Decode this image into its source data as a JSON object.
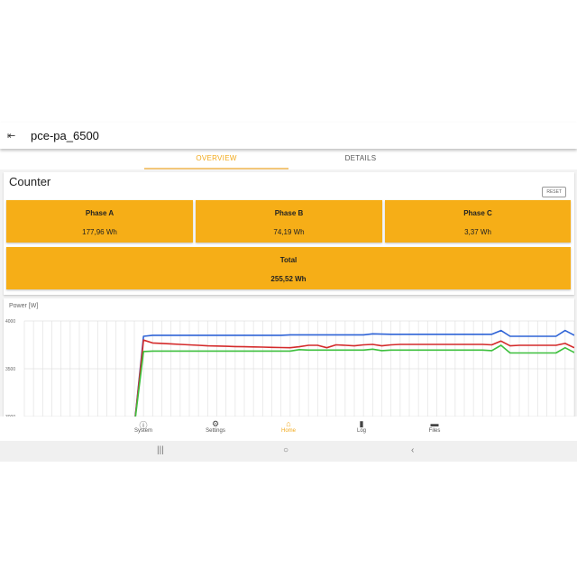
{
  "header": {
    "title": "pce-pa_6500",
    "back_icon": "logout-icon"
  },
  "tabs": [
    {
      "label": "OVERVIEW",
      "active": true
    },
    {
      "label": "DETAILS",
      "active": false
    }
  ],
  "counter": {
    "title": "Counter",
    "reset_label": "RESET",
    "phases": [
      {
        "label": "Phase A",
        "value": "177,96 Wh"
      },
      {
        "label": "Phase B",
        "value": "74,19 Wh"
      },
      {
        "label": "Phase C",
        "value": "3,37 Wh"
      }
    ],
    "total": {
      "label": "Total",
      "value": "255,52 Wh"
    },
    "tile_color": "#f6ae17"
  },
  "chart_data": {
    "type": "line",
    "title": "Power [W]",
    "ylim": [
      3000,
      4000
    ],
    "yticks": [
      "4000",
      "3500",
      "3000"
    ],
    "grid": true,
    "x": [
      0,
      1,
      2,
      3,
      4,
      5,
      6,
      7,
      8,
      9,
      10,
      11,
      12,
      13,
      14,
      15,
      16,
      17,
      18,
      19,
      20,
      21,
      22,
      23,
      24,
      25,
      26,
      27,
      28,
      29,
      30,
      31,
      32,
      33,
      34,
      35,
      36,
      37,
      38,
      39,
      40,
      41,
      42,
      43,
      44,
      45,
      46,
      47,
      48,
      49,
      50,
      51,
      52,
      53,
      54,
      55,
      56,
      57,
      58,
      59,
      60
    ],
    "series": [
      {
        "color": "#2e63d6",
        "values": [
          null,
          null,
          null,
          null,
          null,
          null,
          null,
          null,
          null,
          null,
          null,
          null,
          2900,
          3840,
          3850,
          3850,
          3850,
          3850,
          3850,
          3850,
          3850,
          3850,
          3850,
          3850,
          3850,
          3850,
          3850,
          3850,
          3850,
          3855,
          3855,
          3855,
          3855,
          3855,
          3855,
          3855,
          3855,
          3855,
          3865,
          3862,
          3860,
          3860,
          3860,
          3860,
          3860,
          3860,
          3860,
          3860,
          3860,
          3860,
          3860,
          3860,
          3900,
          3840,
          3840,
          3840,
          3840,
          3840,
          3840,
          3900,
          3850
        ]
      },
      {
        "color": "#d42a2a",
        "values": [
          null,
          null,
          null,
          null,
          null,
          null,
          null,
          null,
          null,
          null,
          null,
          null,
          2900,
          3800,
          3770,
          3765,
          3760,
          3755,
          3750,
          3745,
          3740,
          3738,
          3735,
          3732,
          3730,
          3728,
          3726,
          3724,
          3722,
          3720,
          3730,
          3745,
          3745,
          3720,
          3750,
          3745,
          3740,
          3750,
          3755,
          3740,
          3750,
          3755,
          3755,
          3755,
          3755,
          3755,
          3755,
          3755,
          3755,
          3755,
          3755,
          3750,
          3790,
          3740,
          3745,
          3745,
          3745,
          3745,
          3745,
          3765,
          3720
        ]
      },
      {
        "color": "#3cbf3c",
        "values": [
          null,
          null,
          null,
          null,
          null,
          null,
          null,
          null,
          null,
          null,
          null,
          null,
          2900,
          3680,
          3685,
          3685,
          3685,
          3685,
          3685,
          3685,
          3685,
          3685,
          3685,
          3685,
          3685,
          3685,
          3685,
          3685,
          3685,
          3685,
          3700,
          3695,
          3695,
          3695,
          3695,
          3695,
          3695,
          3695,
          3705,
          3690,
          3695,
          3695,
          3695,
          3695,
          3695,
          3695,
          3695,
          3695,
          3695,
          3695,
          3695,
          3690,
          3745,
          3665,
          3665,
          3665,
          3665,
          3665,
          3665,
          3720,
          3670
        ]
      }
    ]
  },
  "bottom_nav": [
    {
      "label": "System",
      "icon": "info-icon"
    },
    {
      "label": "Settings",
      "icon": "gear-icon"
    },
    {
      "label": "Home",
      "icon": "home-icon",
      "active": true
    },
    {
      "label": "Log",
      "icon": "file-icon"
    },
    {
      "label": "Files",
      "icon": "folder-icon"
    }
  ],
  "accent": "#f2a91a"
}
